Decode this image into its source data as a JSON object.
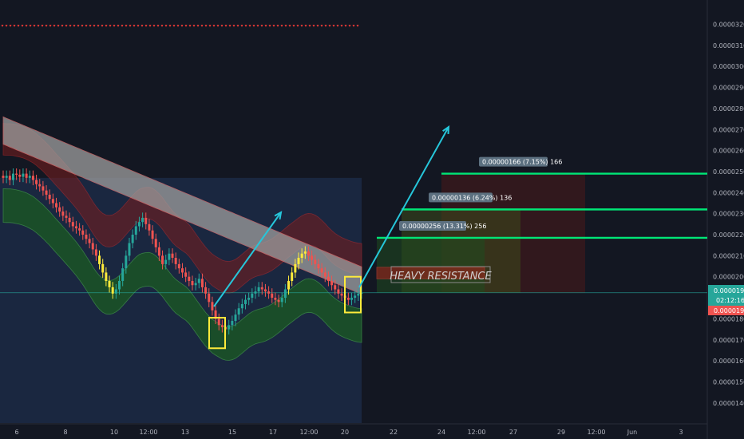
{
  "chart_data": {
    "type": "candlestick",
    "price_ticks": [
      "0.00003200",
      "0.00003100",
      "0.00003000",
      "0.00002900",
      "0.00002800",
      "0.00002700",
      "0.00002600",
      "0.00002500",
      "0.00002400",
      "0.00002300",
      "0.00002200",
      "0.00002100",
      "0.00002000",
      "0.00001800",
      "0.00001700",
      "0.00001600",
      "0.00001500",
      "0.00001400"
    ],
    "price_tick_values": [
      3200,
      3100,
      3000,
      2900,
      2800,
      2700,
      2600,
      2500,
      2400,
      2300,
      2200,
      2100,
      2000,
      1800,
      1700,
      1600,
      1500,
      1400
    ],
    "x_ticks": [
      "6",
      "8",
      "10",
      "12:00",
      "13",
      "15",
      "17",
      "12:00",
      "20",
      "22",
      "24",
      "12:00",
      "27",
      "29",
      "12:00",
      "Jun",
      "3"
    ],
    "current_price": "0.00001924",
    "countdown": "02:12:16",
    "lower_price": "0.00001917",
    "annotation": "HEAVY RESISTANCE",
    "targets": [
      {
        "label": "0.00000166 (7.15%) 166",
        "price": 2490
      },
      {
        "label": "0.00000136 (6.24%) 136",
        "price": 2320
      },
      {
        "label": "0.00000256 (13.31%) 256",
        "price": 2185
      }
    ],
    "entry_price": 1924,
    "resistance_range": [
      1990,
      2045
    ],
    "candles_close": [
      2470,
      2480,
      2460,
      2490,
      2485,
      2475,
      2490,
      2470,
      2480,
      2460,
      2440,
      2430,
      2410,
      2390,
      2370,
      2350,
      2330,
      2310,
      2290,
      2280,
      2260,
      2240,
      2230,
      2220,
      2200,
      2180,
      2160,
      2130,
      2100,
      2060,
      2020,
      1980,
      1950,
      1920,
      1940,
      1980,
      2040,
      2100,
      2160,
      2200,
      2240,
      2260,
      2280,
      2250,
      2220,
      2180,
      2140,
      2100,
      2060,
      2080,
      2110,
      2090,
      2060,
      2040,
      2020,
      2000,
      1980,
      1960,
      1970,
      1990,
      1950,
      1920,
      1880,
      1840,
      1800,
      1770,
      1760,
      1750,
      1770,
      1790,
      1820,
      1850,
      1870,
      1890,
      1900,
      1920,
      1930,
      1950,
      1940,
      1930,
      1920,
      1900,
      1890,
      1880,
      1900,
      1940,
      1980,
      2020,
      2060,
      2090,
      2110,
      2120,
      2100,
      2080,
      2060,
      2040,
      2020,
      2000,
      1980,
      1960,
      1940,
      1920,
      1910,
      1900,
      1890,
      1900,
      1910,
      1920,
      1924
    ]
  }
}
